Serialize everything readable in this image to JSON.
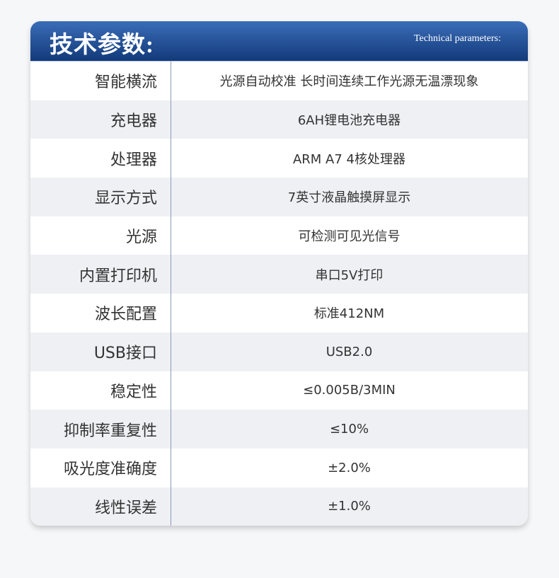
{
  "header": {
    "title": "技术参数:",
    "subtitle": "Technical parameters:"
  },
  "colors": {
    "header_top": "#3b6db8",
    "header_bottom": "#123a7a",
    "row_alt": "#eff0f4"
  },
  "specs": [
    {
      "label": "智能横流",
      "value": "光源自动校准 长时间连续工作光源无温漂现象"
    },
    {
      "label": "充电器",
      "value": "6AH锂电池充电器"
    },
    {
      "label": "处理器",
      "value": "ARM A7 4核处理器"
    },
    {
      "label": "显示方式",
      "value": "7英寸液晶触摸屏显示"
    },
    {
      "label": "光源",
      "value": "可检测可见光信号"
    },
    {
      "label": "内置打印机",
      "value": "串口5V打印"
    },
    {
      "label": "波长配置",
      "value": "标准412NM"
    },
    {
      "label": "USB接口",
      "value": "USB2.0"
    },
    {
      "label": "稳定性",
      "value": "≤0.005B/3MIN"
    },
    {
      "label": "抑制率重复性",
      "value": "≤10%"
    },
    {
      "label": "吸光度准确度",
      "value": "±2.0%"
    },
    {
      "label": "线性误差",
      "value": "±1.0%"
    }
  ]
}
